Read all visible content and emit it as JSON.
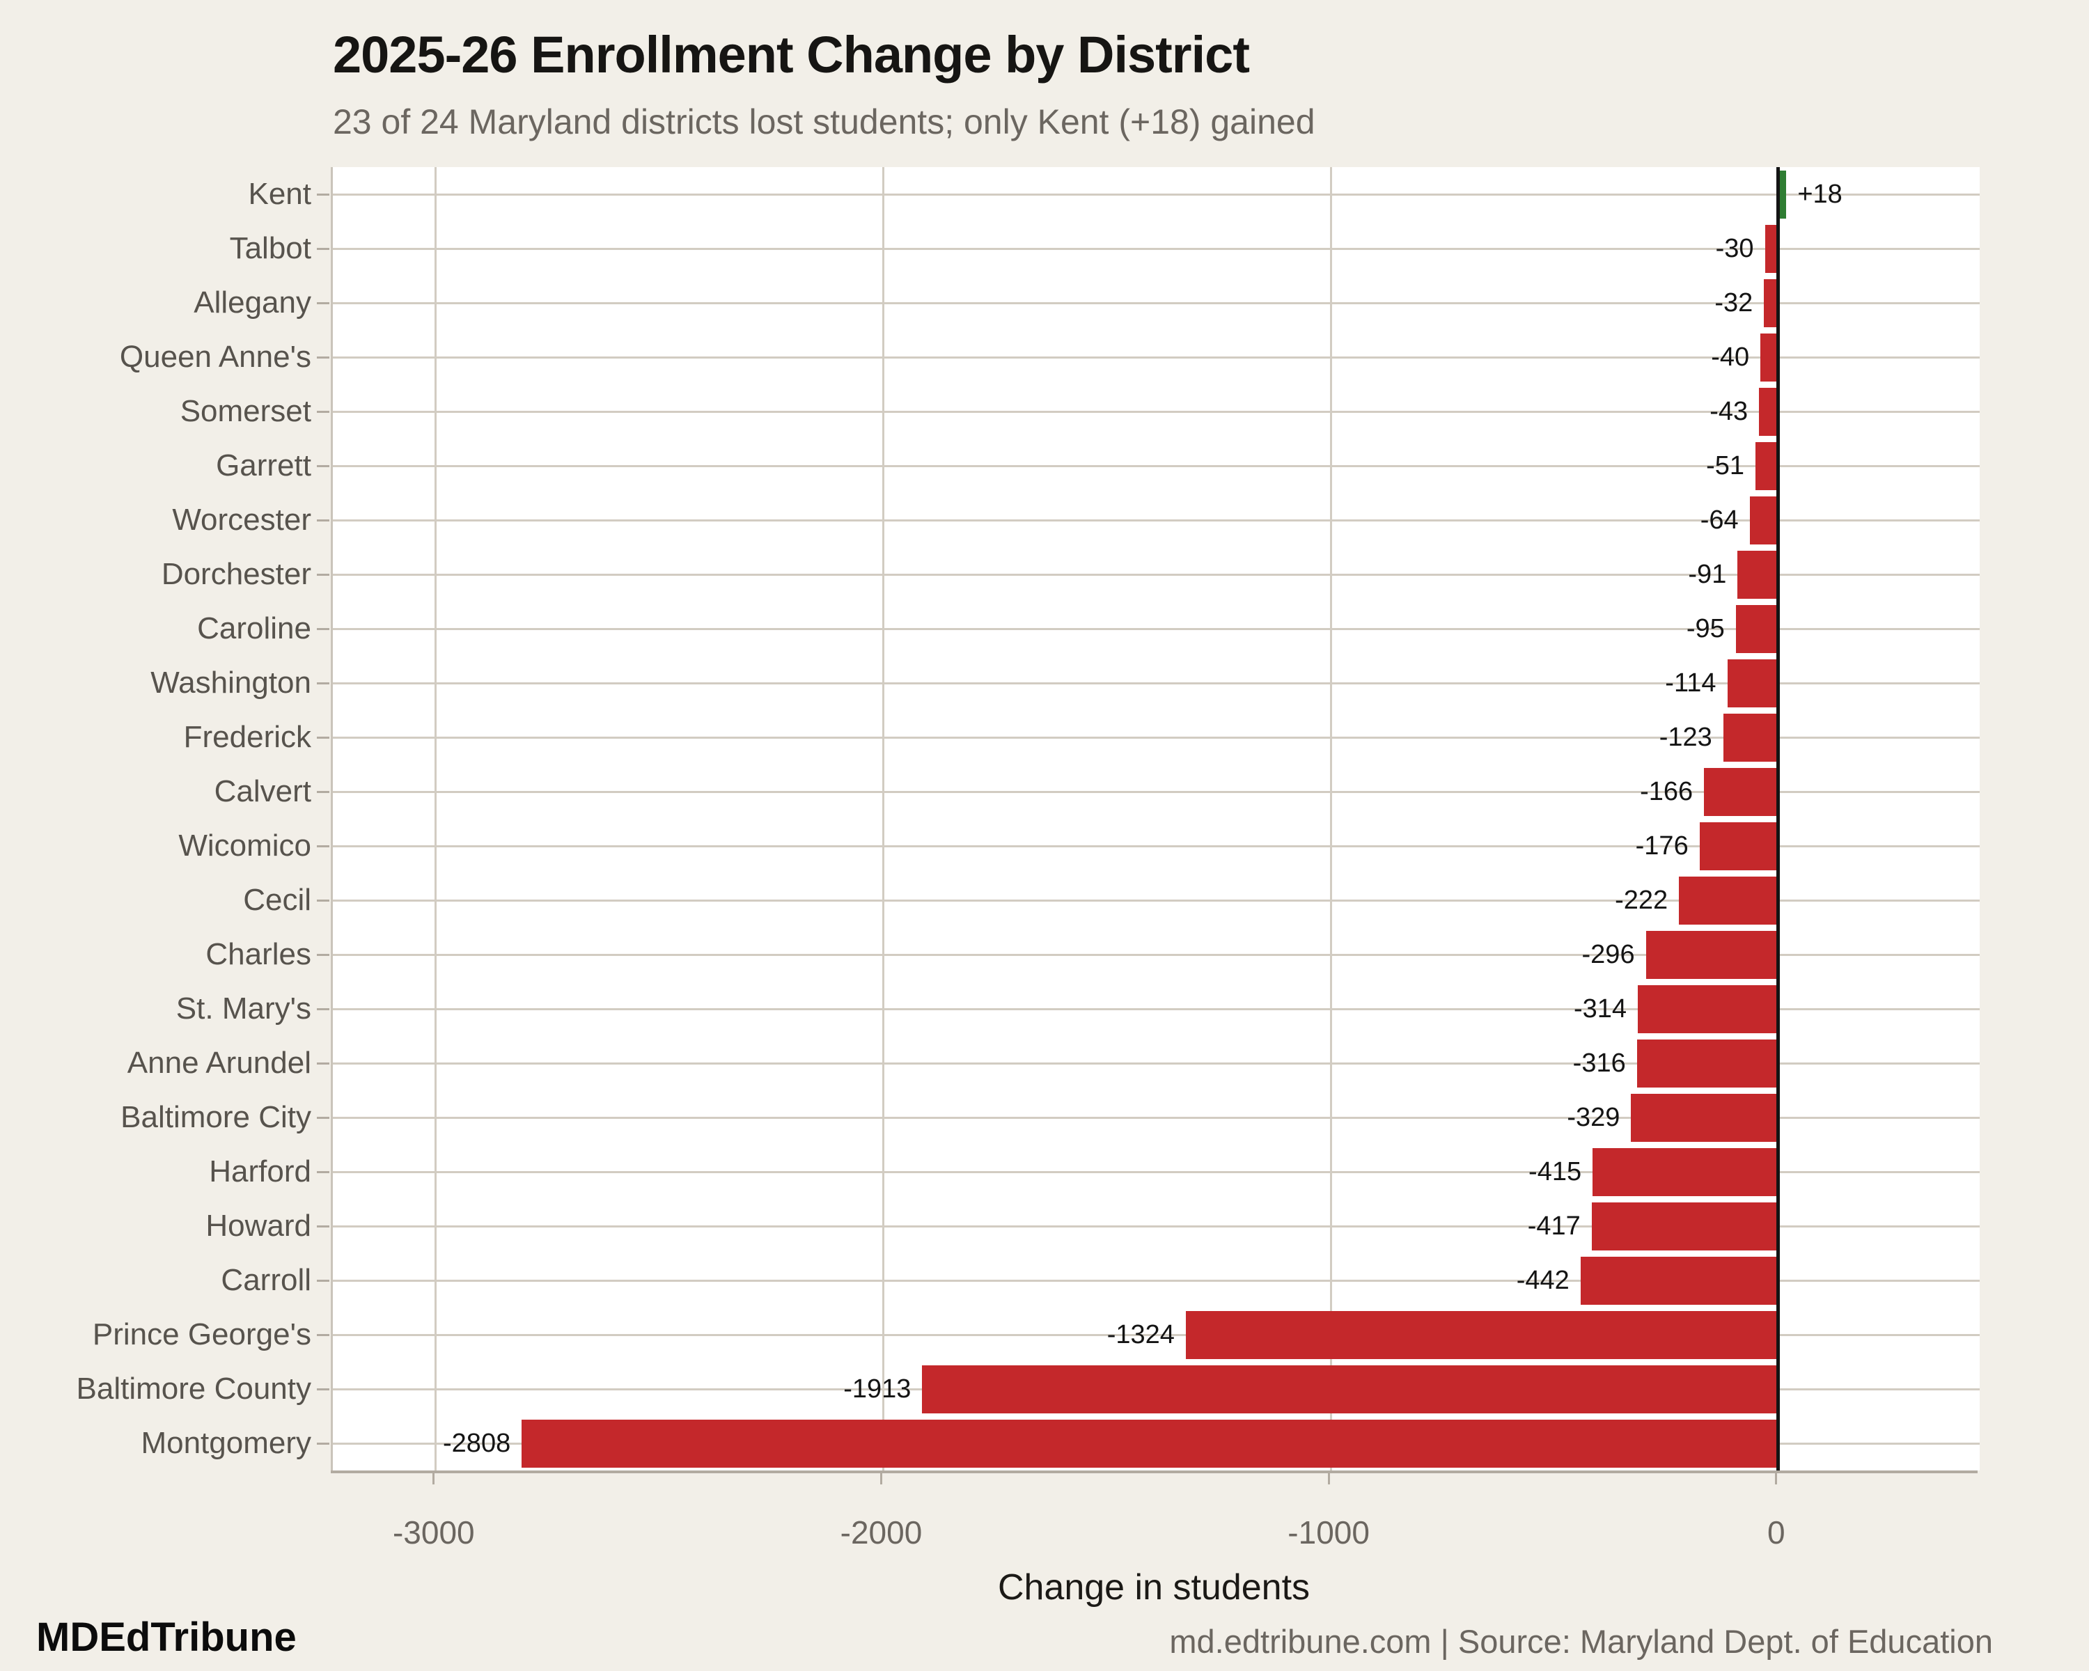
{
  "title": "2025-26 Enrollment Change by District",
  "subtitle": "23 of 24 Maryland districts lost students; only Kent (+18) gained",
  "footer": {
    "brand": "MDEdTribune",
    "source": "md.edtribune.com | Source: Maryland Dept. of Education"
  },
  "chart_data": {
    "type": "bar",
    "orientation": "horizontal",
    "title": "2025-26 Enrollment Change by District",
    "subtitle": "23 of 24 Maryland districts lost students; only Kent (+18) gained",
    "xlabel": "Change in students",
    "ylabel": "",
    "categories": [
      "Kent",
      "Talbot",
      "Allegany",
      "Queen Anne's",
      "Somerset",
      "Garrett",
      "Worcester",
      "Dorchester",
      "Caroline",
      "Washington",
      "Frederick",
      "Calvert",
      "Wicomico",
      "Cecil",
      "Charles",
      "St. Mary's",
      "Anne Arundel",
      "Baltimore City",
      "Harford",
      "Howard",
      "Carroll",
      "Prince George's",
      "Baltimore County",
      "Montgomery"
    ],
    "values": [
      18,
      -30,
      -32,
      -40,
      -43,
      -51,
      -64,
      -91,
      -95,
      -114,
      -123,
      -166,
      -176,
      -222,
      -296,
      -314,
      -316,
      -329,
      -415,
      -417,
      -442,
      -1324,
      -1913,
      -2808
    ],
    "xlim": [
      -3230,
      450
    ],
    "xticks": [
      -3000,
      -2000,
      -1000,
      0
    ],
    "grid": true,
    "legend": false,
    "bar_label_format": "signed",
    "colors": {
      "positive": "#2e7d32",
      "negative": "#c4282b",
      "zero_line": "#141414",
      "panel_background": "#ffffff",
      "page_background": "#f2efe8",
      "gridline": "#d2ccc2",
      "axis_line": "#b2aba1"
    }
  },
  "style": {
    "title_color": "#161513",
    "subtitle_color": "#6b6660",
    "category_label_color": "#57534d",
    "value_label_color": "#141414",
    "tick_label_color": "#6b6660"
  }
}
